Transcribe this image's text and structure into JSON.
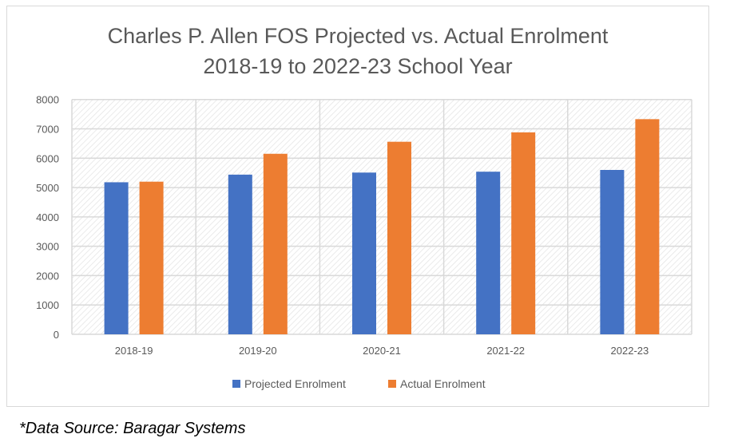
{
  "chart_data": {
    "type": "bar",
    "title": "Charles P. Allen FOS Projected vs. Actual Enrolment",
    "subtitle": "2018-19 to 2022-23 School Year",
    "categories": [
      "2018-19",
      "2019-20",
      "2020-21",
      "2021-22",
      "2022-23"
    ],
    "series": [
      {
        "name": "Projected Enrolment",
        "color": "#4472c4",
        "values": [
          5180,
          5440,
          5510,
          5540,
          5600
        ]
      },
      {
        "name": "Actual Enrolment",
        "color": "#ed7d31",
        "values": [
          5200,
          6150,
          6560,
          6880,
          7330
        ]
      }
    ],
    "ylim": [
      0,
      8000
    ],
    "yticks": [
      "0",
      "1000",
      "2000",
      "3000",
      "4000",
      "5000",
      "6000",
      "7000",
      "8000"
    ],
    "grid": true,
    "legend": "bottom"
  },
  "footnote": "*Data Source: Baragar Systems"
}
